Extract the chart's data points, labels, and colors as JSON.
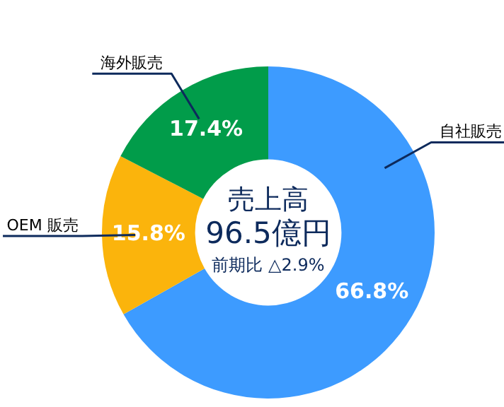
{
  "chart_data": {
    "type": "donut",
    "categories": [
      "自社販売",
      "OEM 販売",
      "海外販売"
    ],
    "values": [
      66.8,
      15.8,
      17.4
    ],
    "colors": [
      "#3d9bff",
      "#fbb40c",
      "#019c4a"
    ],
    "value_labels": [
      "66.8%",
      "15.8%",
      "17.4%"
    ],
    "annotations": [
      "売上高",
      "96.5億円",
      "前期比 △2.9%"
    ],
    "legend": false
  }
}
